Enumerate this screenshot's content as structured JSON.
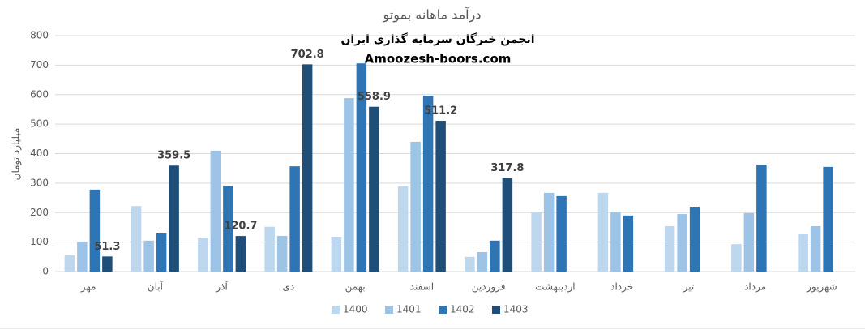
{
  "chart_data": {
    "type": "bar",
    "title": "درآمد ماهانه بموتو",
    "annotations": [
      "انجمن خبرگان سرمایه گذاری ایران",
      "Amoozesh-boors.com"
    ],
    "y_label": "میلیارد تومان",
    "categories": [
      "مهر",
      "آبان",
      "آذر",
      "دی",
      "بهمن",
      "اسفند",
      "فروردین",
      "اردیبهشت",
      "خرداد",
      "تیر",
      "مرداد",
      "شهریور"
    ],
    "series": [
      {
        "name": "1400",
        "color": "#bdd7ee",
        "values": [
          55,
          222,
          115,
          152,
          118,
          289,
          50,
          203,
          267,
          154,
          93,
          129
        ]
      },
      {
        "name": "1401",
        "color": "#9dc3e6",
        "values": [
          102,
          105,
          410,
          121,
          588,
          440,
          66,
          267,
          201,
          195,
          198,
          154
        ]
      },
      {
        "name": "1402",
        "color": "#2e75b6",
        "values": [
          278,
          132,
          291,
          357,
          706,
          596,
          105,
          256,
          190,
          220,
          363,
          355
        ]
      },
      {
        "name": "1403",
        "color": "#1f4e79",
        "show_labels": true,
        "values": [
          51.3,
          359.5,
          120.7,
          702.8,
          558.9,
          511.2,
          317.8,
          null,
          null,
          null,
          null,
          null
        ]
      }
    ],
    "ylim": [
      0,
      800
    ],
    "yticks": [
      0,
      100,
      200,
      300,
      400,
      500,
      600,
      700,
      800
    ],
    "grid": true,
    "legend": "bottom"
  }
}
